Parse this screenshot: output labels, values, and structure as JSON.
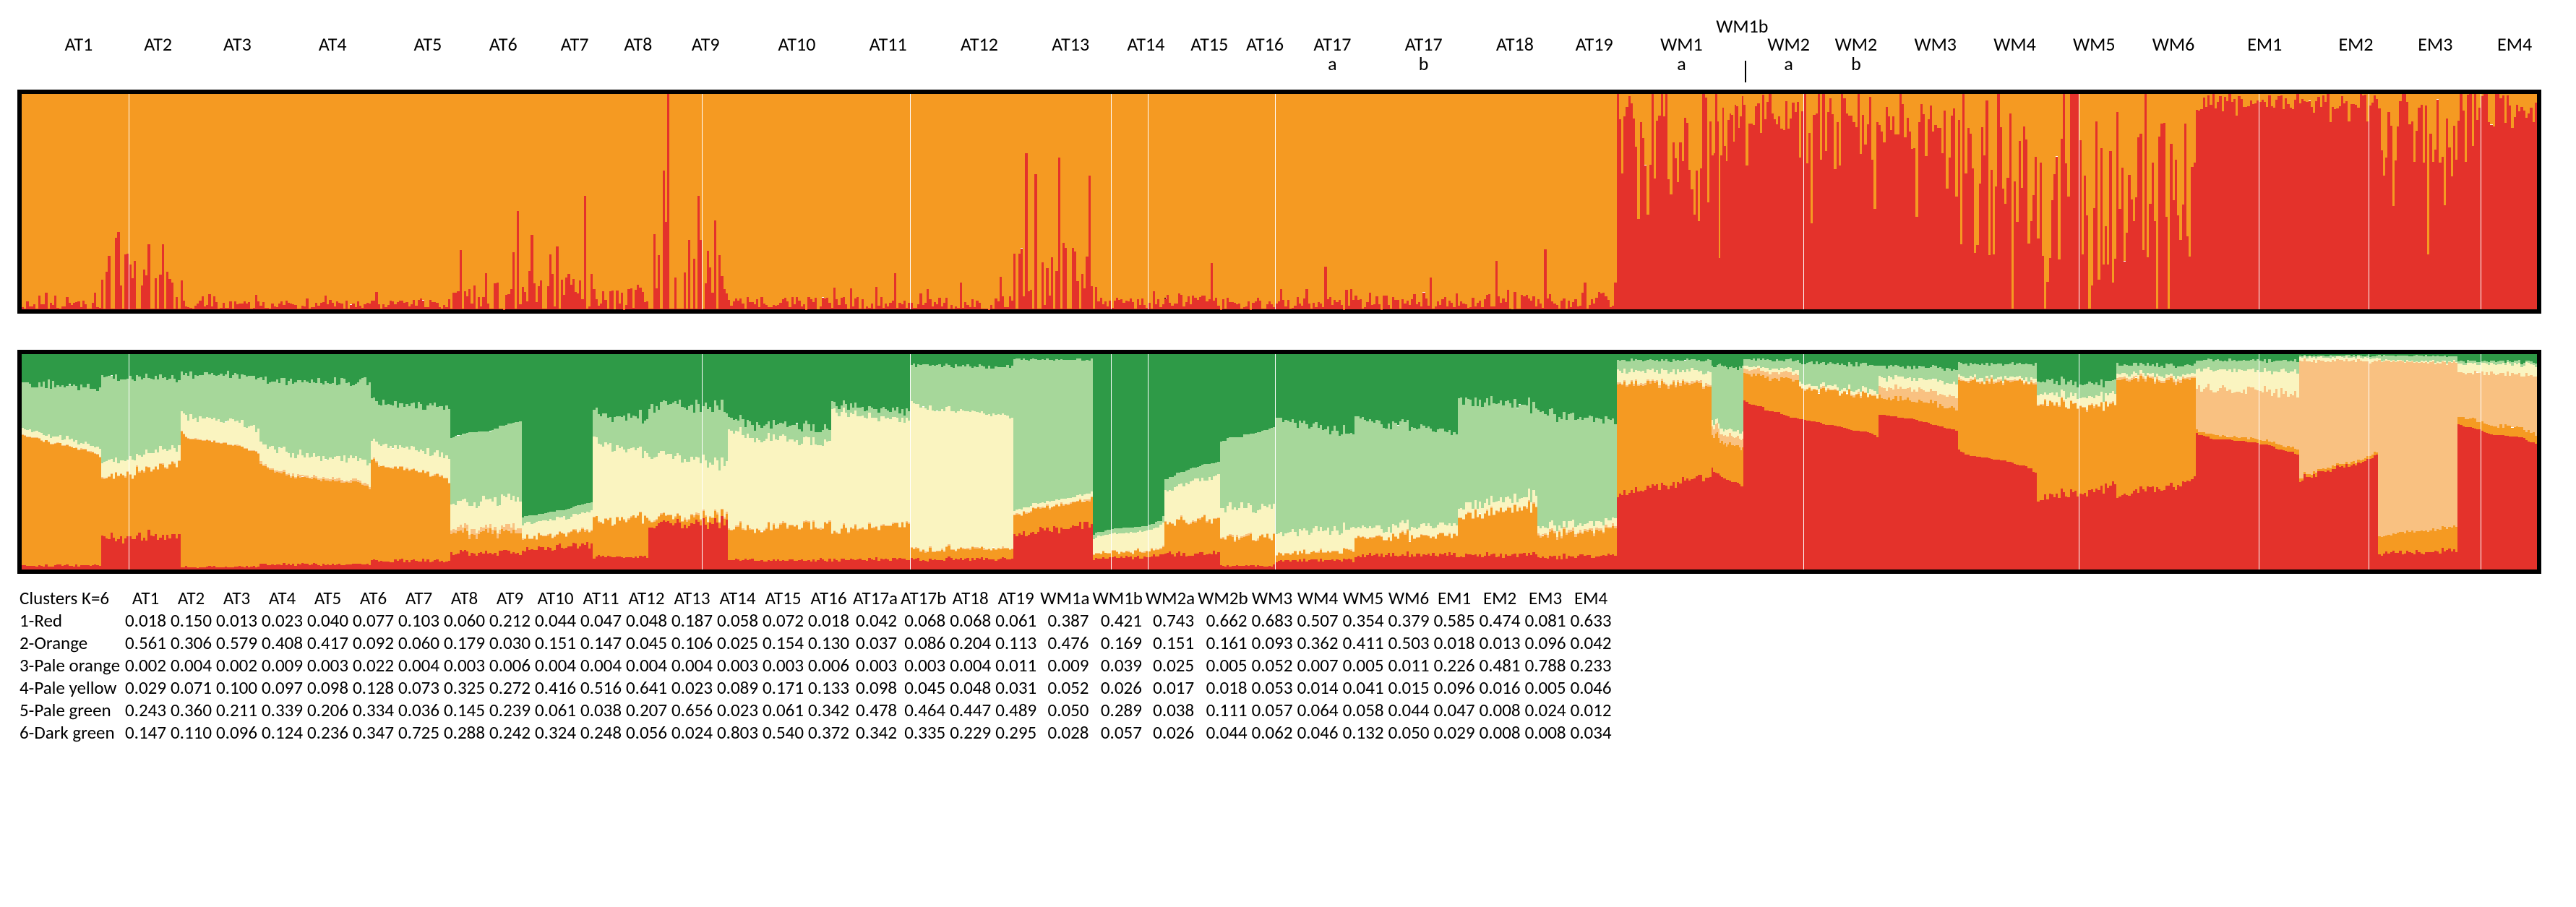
{
  "meta": {
    "plot_inner_width": 3480,
    "bars_per_pop_default": 34,
    "plot1_height": 310,
    "plot2_height": 310
  },
  "colors": {
    "red": "#e4322b",
    "orange": "#f59a22",
    "pale_orange": "#f9c181",
    "pale_yellow": "#faf4c0",
    "pale_green": "#a6d79a",
    "dark_green": "#2e9a47",
    "border": "#000000",
    "divider": "#000000"
  },
  "top_extra_label": "WM1b",
  "populations": [
    {
      "id": "AT1",
      "label": "AT1"
    },
    {
      "id": "AT2",
      "label": "AT2"
    },
    {
      "id": "AT3",
      "label": "AT3"
    },
    {
      "id": "AT4",
      "label": "AT4"
    },
    {
      "id": "AT5",
      "label": "AT5"
    },
    {
      "id": "AT6",
      "label": "AT6"
    },
    {
      "id": "AT7",
      "label": "AT7"
    },
    {
      "id": "AT8",
      "label": "AT8"
    },
    {
      "id": "AT9",
      "label": "AT9"
    },
    {
      "id": "AT10",
      "label": "AT10"
    },
    {
      "id": "AT11",
      "label": "AT11"
    },
    {
      "id": "AT12",
      "label": "AT12"
    },
    {
      "id": "AT13",
      "label": "AT13"
    },
    {
      "id": "AT14",
      "label": "AT14"
    },
    {
      "id": "AT15",
      "label": "AT15"
    },
    {
      "id": "AT16",
      "label": "AT16"
    },
    {
      "id": "AT17a",
      "label": "AT17\na"
    },
    {
      "id": "AT17b",
      "label": "AT17\nb"
    },
    {
      "id": "AT18",
      "label": "AT18"
    },
    {
      "id": "AT19",
      "label": "AT19"
    },
    {
      "id": "WM1a",
      "label": "WM1\na"
    },
    {
      "id": "WM1b",
      "label": ""
    },
    {
      "id": "WM2a",
      "label": "WM2\na"
    },
    {
      "id": "WM2b",
      "label": "WM2\nb"
    },
    {
      "id": "WM3",
      "label": "WM3"
    },
    {
      "id": "WM4",
      "label": "WM4"
    },
    {
      "id": "WM5",
      "label": "WM5"
    },
    {
      "id": "WM6",
      "label": "WM6"
    },
    {
      "id": "EM1",
      "label": "EM1"
    },
    {
      "id": "EM2",
      "label": "EM2"
    },
    {
      "id": "EM3",
      "label": "EM3"
    },
    {
      "id": "EM4",
      "label": "EM4"
    }
  ],
  "pop_rel_width": {
    "AT1": 1.0,
    "AT2": 1.0,
    "AT3": 1.0,
    "AT4": 1.4,
    "AT5": 1.0,
    "AT6": 0.9,
    "AT7": 0.9,
    "AT8": 0.7,
    "AT9": 1.0,
    "AT10": 1.3,
    "AT11": 1.0,
    "AT12": 1.3,
    "AT13": 1.0,
    "AT14": 0.9,
    "AT15": 0.7,
    "AT16": 0.7,
    "AT17a": 1.0,
    "AT17b": 1.3,
    "AT18": 1.0,
    "AT19": 1.0,
    "WM1a": 1.2,
    "WM1b": 0.4,
    "WM2a": 0.7,
    "WM2b": 1.0,
    "WM3": 1.0,
    "WM4": 1.0,
    "WM5": 1.0,
    "WM6": 1.0,
    "EM1": 1.3,
    "EM2": 1.0,
    "EM3": 1.0,
    "EM4": 1.0
  },
  "plot1": {
    "comment": "K=2, red bottom, orange top. mean_red per pop; jitter amplitudes to add noisy red spikes.",
    "mean_red": {
      "AT1": 0.02,
      "AT2": 0.06,
      "AT3": 0.02,
      "AT4": 0.02,
      "AT5": 0.03,
      "AT6": 0.05,
      "AT7": 0.06,
      "AT8": 0.05,
      "AT9": 0.07,
      "AT10": 0.03,
      "AT11": 0.03,
      "AT12": 0.03,
      "AT13": 0.07,
      "AT14": 0.03,
      "AT15": 0.04,
      "AT16": 0.02,
      "AT17a": 0.03,
      "AT17b": 0.04,
      "AT18": 0.04,
      "AT19": 0.04,
      "WM1a": 0.7,
      "WM1b": 0.78,
      "WM2a": 0.9,
      "WM2b": 0.83,
      "WM3": 0.85,
      "WM4": 0.6,
      "WM5": 0.5,
      "WM6": 0.55,
      "EM1": 0.96,
      "EM2": 0.96,
      "EM3": 0.8,
      "EM4": 0.92
    },
    "jitter": {
      "AT1": 0.02,
      "AT2": 0.3,
      "AT3": 0.02,
      "AT4": 0.02,
      "AT5": 0.02,
      "AT6": 0.08,
      "AT7": 0.12,
      "AT8": 0.05,
      "AT9": 0.35,
      "AT10": 0.03,
      "AT11": 0.03,
      "AT12": 0.03,
      "AT13": 0.25,
      "AT14": 0.03,
      "AT15": 0.04,
      "AT16": 0.02,
      "AT17a": 0.03,
      "AT17b": 0.04,
      "AT18": 0.04,
      "AT19": 0.04,
      "WM1a": 0.3,
      "WM1b": 0.22,
      "WM2a": 0.1,
      "WM2b": 0.17,
      "WM3": 0.15,
      "WM4": 0.35,
      "WM5": 0.4,
      "WM6": 0.35,
      "EM1": 0.04,
      "EM2": 0.04,
      "EM3": 0.2,
      "EM4": 0.08
    }
  },
  "plot2": {
    "comment": "K=6. Per-pop mean proportions bottom->top: red,orange,pale_orange,pale_yellow,pale_green,dark_green. Values = table rows.",
    "order_bottom_to_top": [
      "red",
      "orange",
      "pale_orange",
      "pale_yellow",
      "pale_green",
      "dark_green"
    ],
    "jitter": 0.14,
    "sort_within_pop": true
  },
  "table": {
    "header": "Clusters K=6",
    "columns": [
      "AT1",
      "AT2",
      "AT3",
      "AT4",
      "AT5",
      "AT6",
      "AT7",
      "AT8",
      "AT9",
      "AT10",
      "AT11",
      "AT12",
      "AT13",
      "AT14",
      "AT15",
      "AT16",
      "AT17a",
      "AT17b",
      "AT18",
      "AT19",
      "WM1a",
      "WM1b",
      "WM2a",
      "WM2b",
      "WM3",
      "WM4",
      "WM5",
      "WM6",
      "EM1",
      "EM2",
      "EM3",
      "EM4"
    ],
    "rows": [
      {
        "label": "1-Red",
        "key": "red",
        "vals": [
          0.018,
          0.15,
          0.013,
          0.023,
          0.04,
          0.077,
          0.103,
          0.06,
          0.212,
          0.044,
          0.047,
          0.048,
          0.187,
          0.058,
          0.072,
          0.018,
          0.042,
          0.068,
          0.068,
          0.061,
          0.387,
          0.421,
          0.743,
          0.662,
          0.683,
          0.507,
          0.354,
          0.379,
          0.585,
          0.474,
          0.081,
          0.633
        ]
      },
      {
        "label": "2-Orange",
        "key": "orange",
        "vals": [
          0.561,
          0.306,
          0.579,
          0.408,
          0.417,
          0.092,
          0.06,
          0.179,
          0.03,
          0.151,
          0.147,
          0.045,
          0.106,
          0.025,
          0.154,
          0.13,
          0.037,
          0.086,
          0.204,
          0.113,
          0.476,
          0.169,
          0.151,
          0.161,
          0.093,
          0.362,
          0.411,
          0.503,
          0.018,
          0.013,
          0.096,
          0.042
        ]
      },
      {
        "label": "3-Pale orange",
        "key": "pale_orange",
        "vals": [
          0.002,
          0.004,
          0.002,
          0.009,
          0.003,
          0.022,
          0.004,
          0.003,
          0.006,
          0.004,
          0.004,
          0.004,
          0.004,
          0.003,
          0.003,
          0.006,
          0.003,
          0.003,
          0.004,
          0.011,
          0.009,
          0.039,
          0.025,
          0.005,
          0.052,
          0.007,
          0.005,
          0.011,
          0.226,
          0.481,
          0.788,
          0.233
        ]
      },
      {
        "label": "4-Pale yellow",
        "key": "pale_yellow",
        "vals": [
          0.029,
          0.071,
          0.1,
          0.097,
          0.098,
          0.128,
          0.073,
          0.325,
          0.272,
          0.416,
          0.516,
          0.641,
          0.023,
          0.089,
          0.171,
          0.133,
          0.098,
          0.045,
          0.048,
          0.031,
          0.052,
          0.026,
          0.017,
          0.018,
          0.053,
          0.014,
          0.041,
          0.015,
          0.096,
          0.016,
          0.005,
          0.046
        ]
      },
      {
        "label": "5-Pale green",
        "key": "pale_green",
        "vals": [
          0.243,
          0.36,
          0.211,
          0.339,
          0.206,
          0.334,
          0.036,
          0.145,
          0.239,
          0.061,
          0.038,
          0.207,
          0.656,
          0.023,
          0.061,
          0.342,
          0.478,
          0.464,
          0.447,
          0.489,
          0.05,
          0.289,
          0.038,
          0.111,
          0.057,
          0.064,
          0.058,
          0.044,
          0.047,
          0.008,
          0.024,
          0.012
        ]
      },
      {
        "label": "6-Dark green",
        "key": "dark_green",
        "vals": [
          0.147,
          0.11,
          0.096,
          0.124,
          0.236,
          0.347,
          0.725,
          0.288,
          0.242,
          0.324,
          0.248,
          0.056,
          0.024,
          0.803,
          0.54,
          0.372,
          0.342,
          0.335,
          0.229,
          0.295,
          0.028,
          0.057,
          0.026,
          0.044,
          0.062,
          0.046,
          0.132,
          0.05,
          0.029,
          0.008,
          0.008,
          0.034
        ]
      }
    ]
  }
}
